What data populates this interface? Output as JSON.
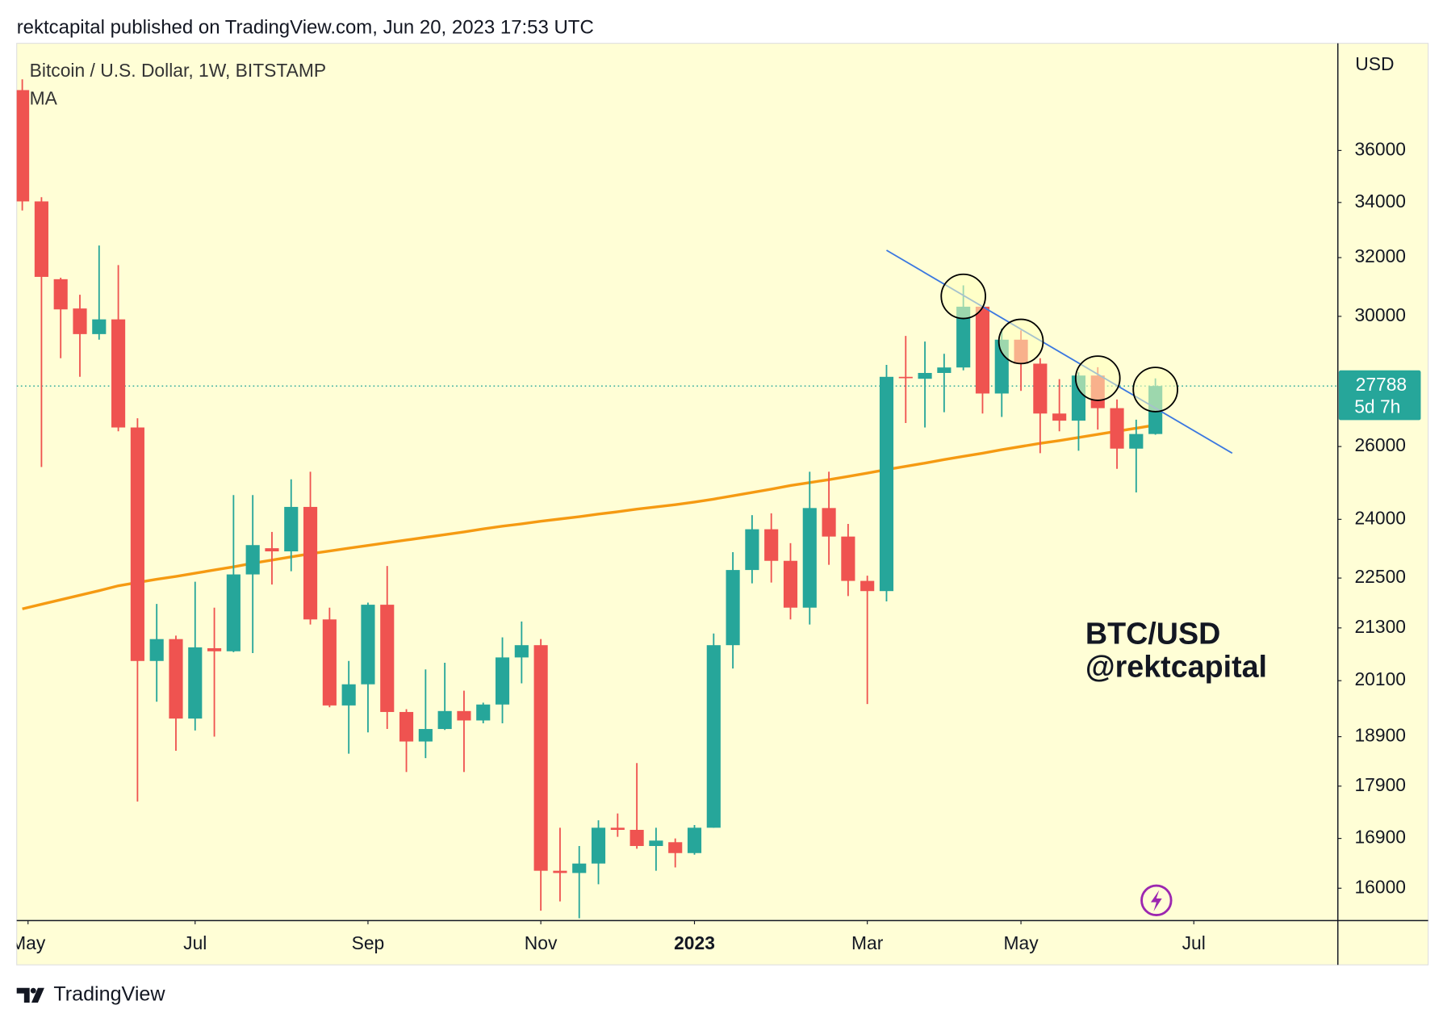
{
  "chart_data": {
    "type": "candlestick",
    "header": "rektcapital published on TradingView.com, Jun 20, 2023 17:53 UTC",
    "title": "Bitcoin / U.S. Dollar, 1W, BITSTAMP",
    "axis_unit": "USD",
    "footer": "TradingView",
    "annotation": [
      "BTC/USD",
      "@rektcapital"
    ],
    "log_scale": true,
    "up_color": "#26a69a",
    "down_color": "#ef5350",
    "background": "#fffed6",
    "xlim": [
      -0.29,
      68.5
    ],
    "xticks": [
      {
        "value": 0.3,
        "label": "May"
      },
      {
        "value": 9,
        "label": "Jul"
      },
      {
        "value": 18,
        "label": "Sep"
      },
      {
        "value": 27,
        "label": "Nov"
      },
      {
        "value": 35,
        "label": "2023"
      },
      {
        "value": 44,
        "label": "Mar"
      },
      {
        "value": 52,
        "label": "May"
      },
      {
        "value": 61,
        "label": "Jul"
      }
    ],
    "ylim": [
      15440,
      40500
    ],
    "yticks": [
      16000,
      16900,
      17900,
      18900,
      20100,
      21300,
      22500,
      24000,
      26000,
      30000,
      32000,
      34000,
      36000
    ],
    "open": [
      38470,
      34040,
      31250,
      30260,
      29420,
      29900,
      26550,
      20540,
      21040,
      19280,
      20830,
      20760,
      22590,
      23250,
      23170,
      24330,
      21500,
      19560,
      20020,
      21850,
      19420,
      18800,
      19060,
      19440,
      19240,
      19580,
      20620,
      20900,
      16310,
      16270,
      16440,
      17100,
      17060,
      16760,
      16830,
      16630,
      17100,
      20900,
      22700,
      23740,
      22930,
      21780,
      24300,
      23550,
      22430,
      22180,
      28070,
      28010,
      28190,
      28360,
      30320,
      27560,
      29240,
      28480,
      26960,
      26750,
      28110,
      27120,
      25940,
      26360
    ],
    "high": [
      38930,
      34200,
      31300,
      30720,
      32430,
      31740,
      26820,
      21870,
      21120,
      22410,
      21780,
      24650,
      24650,
      23670,
      25080,
      25290,
      21780,
      20540,
      21900,
      22800,
      19480,
      20350,
      20500,
      19880,
      19620,
      21080,
      21450,
      21040,
      17100,
      16760,
      17240,
      17370,
      18360,
      17100,
      16900,
      17150,
      21170,
      23150,
      24110,
      24160,
      23380,
      25290,
      25290,
      23880,
      22560,
      28440,
      29360,
      29180,
      28790,
      31040,
      30320,
      29600,
      29540,
      28650,
      28000,
      28210,
      28370,
      27380,
      26780,
      28020
    ],
    "low": [
      33700,
      25420,
      28650,
      28070,
      29240,
      26440,
      17600,
      19640,
      18610,
      19030,
      18900,
      20740,
      20720,
      22340,
      22670,
      21380,
      19520,
      18550,
      18990,
      19060,
      18180,
      18460,
      19040,
      18180,
      19180,
      19180,
      20040,
      15610,
      15770,
      15480,
      16070,
      16930,
      16710,
      16310,
      16370,
      16600,
      17100,
      20370,
      22370,
      22390,
      21500,
      21380,
      22830,
      22060,
      19590,
      21930,
      26680,
      26550,
      27000,
      28270,
      26960,
      26860,
      27640,
      25810,
      26440,
      25880,
      26490,
      25370,
      24720,
      26340
    ],
    "close": [
      34040,
      31330,
      30230,
      29420,
      29900,
      26550,
      20540,
      21040,
      19280,
      20850,
      20760,
      22590,
      23330,
      23170,
      24330,
      21500,
      19560,
      20020,
      21850,
      19420,
      18800,
      19060,
      19440,
      19240,
      19580,
      20620,
      20900,
      16310,
      16270,
      16440,
      17100,
      17060,
      16760,
      16860,
      16630,
      17100,
      20900,
      22700,
      23740,
      22930,
      21780,
      24300,
      23550,
      22430,
      22180,
      28070,
      28040,
      28190,
      28360,
      30320,
      27560,
      29240,
      28480,
      26960,
      26750,
      28110,
      27120,
      25940,
      26360,
      27788
    ],
    "ma": {
      "name": "MA",
      "color": "#f59a12",
      "values": [
        21750,
        21860,
        21970,
        22080,
        22190,
        22310,
        22390,
        22470,
        22540,
        22620,
        22700,
        22780,
        22870,
        22950,
        23030,
        23110,
        23180,
        23250,
        23320,
        23390,
        23460,
        23530,
        23600,
        23670,
        23750,
        23820,
        23880,
        23950,
        24010,
        24070,
        24140,
        24200,
        24270,
        24330,
        24390,
        24460,
        24540,
        24630,
        24720,
        24810,
        24910,
        24990,
        25070,
        25160,
        25250,
        25350,
        25440,
        25530,
        25630,
        25720,
        25810,
        25910,
        26000,
        26090,
        26170,
        26260,
        26350,
        26440,
        26530,
        26620
      ]
    },
    "trendline": {
      "color": "#3b78e0",
      "x": [
        45,
        63
      ],
      "values": [
        32260,
        25810
      ]
    },
    "highlights": [
      49,
      52,
      56,
      59
    ],
    "last_price": {
      "value": 27788,
      "countdown": "5d 7h"
    }
  }
}
